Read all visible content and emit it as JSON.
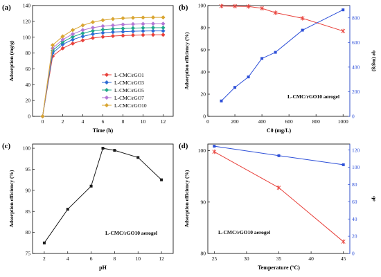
{
  "chart_data": [
    {
      "panel": "(a)",
      "type": "line",
      "xlabel": "Time (h)",
      "ylabel": "Adsorption (mg/g)",
      "xlim": [
        -1,
        13
      ],
      "ylim": [
        0,
        140
      ],
      "xticks": [
        0,
        2,
        4,
        6,
        8,
        10,
        12
      ],
      "yticks": [
        0,
        20,
        40,
        60,
        80,
        100,
        120,
        140
      ],
      "legend_position": "center-right",
      "x": [
        0,
        1,
        2,
        3,
        4,
        5,
        6,
        7,
        8,
        9,
        10,
        11,
        12
      ],
      "series": [
        {
          "name": "L-CMC/rGO1",
          "color": "#e8403a",
          "marker": "diamond",
          "values": [
            0,
            76,
            86,
            92,
            96,
            99,
            100.5,
            101.5,
            102,
            102.5,
            102.8,
            103,
            103
          ]
        },
        {
          "name": "L-CMC/rGO3",
          "color": "#2d6bd4",
          "marker": "diamond",
          "values": [
            0,
            80,
            91,
            97,
            101,
            104,
            105.5,
            106.5,
            107,
            107.5,
            107.8,
            108,
            108
          ]
        },
        {
          "name": "L-CMC/rGO5",
          "color": "#1fa88a",
          "marker": "diamond",
          "values": [
            0,
            83,
            94,
            100.5,
            105,
            108,
            109.5,
            110.5,
            111,
            111.5,
            111.8,
            112,
            112
          ]
        },
        {
          "name": "L-CMC/rGO7",
          "color": "#b377d6",
          "marker": "diamond",
          "values": [
            0,
            86,
            97,
            104,
            109,
            112,
            114,
            115,
            116,
            116.5,
            116.8,
            117,
            117
          ]
        },
        {
          "name": "L-CMC/rGO10",
          "color": "#d9a531",
          "marker": "diamond",
          "values": [
            0,
            90,
            101,
            109,
            115,
            119,
            121.5,
            123,
            124,
            124.5,
            124.8,
            125,
            125
          ]
        }
      ]
    },
    {
      "panel": "(b)",
      "type": "line",
      "annotation": "L-CMC/rGO10 aerogel",
      "xlabel": "C0 (mg/L)",
      "ylabel_left": "Adsorption efficiency (%)",
      "ylabel_right": "qe (mg/g)",
      "xlim": [
        0,
        1050
      ],
      "ylim_left": [
        0,
        100
      ],
      "ylim_right": [
        0,
        900
      ],
      "xticks": [
        0,
        200,
        400,
        600,
        800,
        1000
      ],
      "yticks_left": [
        0,
        20,
        40,
        60,
        80,
        100
      ],
      "yticks_right": [
        0,
        200,
        400,
        600,
        800
      ],
      "series": [
        {
          "axis": "left",
          "color": "#e8403a",
          "marker": "star",
          "x": [
            100,
            200,
            300,
            400,
            500,
            700,
            1000
          ],
          "values": [
            99.5,
            99.4,
            99.2,
            97.5,
            93.5,
            88.5,
            77
          ]
        },
        {
          "axis": "right",
          "color": "#2d4fd8",
          "marker": "square",
          "x": [
            100,
            200,
            300,
            400,
            500,
            700,
            1000
          ],
          "values": [
            125,
            235,
            320,
            470,
            520,
            700,
            865
          ]
        }
      ]
    },
    {
      "panel": "(c)",
      "type": "line",
      "annotation": "L-CMC/rGO10 aerogel",
      "xlabel": "pH",
      "ylabel": "Adsorption efficiency (%)",
      "xlim": [
        1,
        13
      ],
      "ylim": [
        75,
        101
      ],
      "xticks": [
        2,
        4,
        6,
        8,
        10,
        12
      ],
      "yticks": [
        75,
        80,
        85,
        90,
        95,
        100
      ],
      "series": [
        {
          "color": "#1a1a1a",
          "marker": "square",
          "x": [
            2,
            4,
            6,
            7,
            8,
            10,
            12
          ],
          "values": [
            77.5,
            85.5,
            91,
            100,
            99.5,
            97.8,
            92.5
          ]
        }
      ]
    },
    {
      "panel": "(d)",
      "type": "line",
      "annotation": "L-CMC/rGO10 aerogel",
      "xlabel": "Temperature (°C)",
      "ylabel_left": "Adsorption efficiency (%)",
      "ylabel_right": "qe",
      "xlim": [
        24,
        46
      ],
      "ylim_left": [
        80,
        101.3
      ],
      "ylim_right": [
        0,
        127
      ],
      "xticks": [
        25,
        30,
        35,
        40,
        45
      ],
      "yticks_left": [
        80,
        90,
        100
      ],
      "yticks_right": [
        0,
        20,
        40,
        60,
        80,
        100,
        120
      ],
      "series": [
        {
          "axis": "left",
          "color": "#e8403a",
          "marker": "star",
          "x": [
            25,
            35,
            45
          ],
          "values": [
            99.8,
            92.8,
            82.3
          ]
        },
        {
          "axis": "right",
          "color": "#2d4fd8",
          "marker": "square",
          "x": [
            25,
            35,
            45
          ],
          "values": [
            124.5,
            113.5,
            103
          ]
        }
      ]
    }
  ]
}
